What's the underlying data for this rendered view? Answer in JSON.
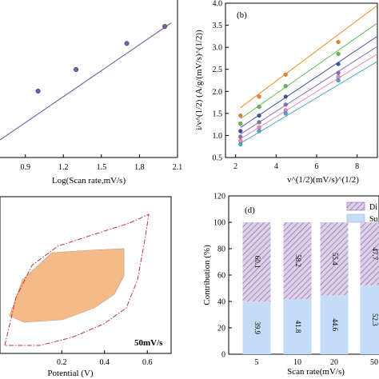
{
  "colors": {
    "purple": "#7b5aa6",
    "cv_fill": "#f5b27c",
    "cv_outline": "#c8323c",
    "diffusion": "#c9b3d9",
    "surface": "#c5dcf7",
    "series_b": [
      "#f08a24",
      "#5fbf55",
      "#3a4fa8",
      "#8b6fbf",
      "#e98ab4",
      "#4aa6d6"
    ]
  },
  "chart_data": [
    {
      "panel": "a",
      "type": "scatter",
      "xlabel": "Log(Scan rate,mV/s)",
      "ylabel": "",
      "xlim": [
        0.7,
        2.1
      ],
      "xticks": [
        "0.9",
        "1.2",
        "1.5",
        "1.8",
        "2.1"
      ],
      "xtick_values": [
        0.9,
        1.2,
        1.5,
        1.8,
        2.1
      ],
      "ylim": [
        0,
        1
      ],
      "x": [
        1.0,
        1.3,
        1.7,
        2.0
      ],
      "y": [
        0.43,
        0.62,
        0.85,
        1.0
      ],
      "fit": {
        "x": [
          0.7,
          2.05
        ],
        "y": [
          0.0,
          1.03
        ]
      }
    },
    {
      "panel": "b",
      "panel_label": "(b)",
      "type": "scatter",
      "xlabel": "v^(1/2)(mV/s)^(1/2)",
      "ylabel": "i/v^(1/2) (A/g/(mV/s)^(1/2))",
      "xlim": [
        1.5,
        9.0
      ],
      "xticks": [
        "2",
        "4",
        "6",
        "8"
      ],
      "xtick_values": [
        2,
        4,
        6,
        8
      ],
      "ylim": [
        0.5,
        4.0
      ],
      "yticks": [
        "0.5",
        "1.0",
        "1.5",
        "2.0",
        "2.5",
        "3.0",
        "3.5",
        "4.0"
      ],
      "ytick_values": [
        0.5,
        1.0,
        1.5,
        2.0,
        2.5,
        3.0,
        3.5,
        4.0
      ],
      "x": [
        2.24,
        3.16,
        4.47,
        7.07
      ],
      "series": [
        {
          "values": [
            1.45,
            1.88,
            2.38,
            3.12
          ],
          "fit": [
            1.63,
            3.95
          ]
        },
        {
          "values": [
            1.27,
            1.65,
            2.12,
            2.85
          ],
          "fit": [
            1.38,
            3.55
          ]
        },
        {
          "values": [
            1.1,
            1.45,
            1.88,
            2.62
          ],
          "fit": [
            1.18,
            3.25
          ]
        },
        {
          "values": [
            0.97,
            1.3,
            1.7,
            2.42
          ],
          "fit": [
            1.03,
            3.02
          ]
        },
        {
          "values": [
            0.88,
            1.18,
            1.57,
            2.33
          ],
          "fit": [
            0.92,
            2.85
          ]
        },
        {
          "values": [
            0.8,
            1.1,
            1.5,
            2.25
          ],
          "fit": [
            0.82,
            2.68
          ]
        }
      ]
    },
    {
      "panel": "c",
      "type": "area",
      "xlabel": "Potential (V)",
      "xlim": [
        -0.1,
        0.7
      ],
      "xticks": [
        "0.2",
        "0.4",
        "0.6"
      ],
      "xtick_values": [
        0.2,
        0.4,
        0.6
      ],
      "annotation": "50mV/s"
    },
    {
      "panel": "d",
      "panel_label": "(d)",
      "type": "bar",
      "categories": [
        "5",
        "10",
        "20",
        "50"
      ],
      "xlabel": "Scan rate(mV/s)",
      "ylabel": "Contribution (%)",
      "ylim": [
        0,
        120
      ],
      "yticks": [
        "0",
        "20",
        "40",
        "60",
        "80",
        "100",
        "120"
      ],
      "ytick_values": [
        0,
        20,
        40,
        60,
        80,
        100,
        120
      ],
      "series": [
        {
          "name": "Su",
          "values": [
            39.9,
            41.8,
            44.6,
            52.3
          ]
        },
        {
          "name": "Di",
          "values": [
            60.1,
            58.2,
            55.4,
            47.7
          ]
        }
      ],
      "value_labels": {
        "surface": [
          "39.9",
          "41.8",
          "44.6",
          "52.3"
        ],
        "diffusion": [
          "60.1",
          "58.2",
          "55.4",
          "47.7"
        ]
      }
    }
  ]
}
